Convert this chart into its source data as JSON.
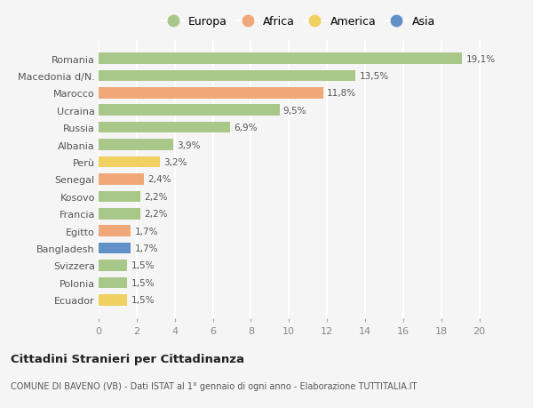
{
  "categories": [
    "Romania",
    "Macedonia d/N.",
    "Marocco",
    "Ucraina",
    "Russia",
    "Albania",
    "Perù",
    "Senegal",
    "Kosovo",
    "Francia",
    "Egitto",
    "Bangladesh",
    "Svizzera",
    "Polonia",
    "Ecuador"
  ],
  "values": [
    19.1,
    13.5,
    11.8,
    9.5,
    6.9,
    3.9,
    3.2,
    2.4,
    2.2,
    2.2,
    1.7,
    1.7,
    1.5,
    1.5,
    1.5
  ],
  "labels": [
    "19,1%",
    "13,5%",
    "11,8%",
    "9,5%",
    "6,9%",
    "3,9%",
    "3,2%",
    "2,4%",
    "2,2%",
    "2,2%",
    "1,7%",
    "1,7%",
    "1,5%",
    "1,5%",
    "1,5%"
  ],
  "continents": [
    "Europa",
    "Europa",
    "Africa",
    "Europa",
    "Europa",
    "Europa",
    "America",
    "Africa",
    "Europa",
    "Europa",
    "Africa",
    "Asia",
    "Europa",
    "Europa",
    "America"
  ],
  "colors": {
    "Europa": "#a8c88a",
    "Africa": "#f0a878",
    "America": "#f0d060",
    "Asia": "#6090c8"
  },
  "legend_order": [
    "Europa",
    "Africa",
    "America",
    "Asia"
  ],
  "title": "Cittadini Stranieri per Cittadinanza",
  "subtitle": "COMUNE DI BAVENO (VB) - Dati ISTAT al 1° gennaio di ogni anno - Elaborazione TUTTITALIA.IT",
  "xlim": [
    0,
    21
  ],
  "xticks": [
    0,
    2,
    4,
    6,
    8,
    10,
    12,
    14,
    16,
    18,
    20
  ],
  "background_color": "#f5f5f5",
  "grid_color": "#ffffff",
  "bar_height": 0.65
}
